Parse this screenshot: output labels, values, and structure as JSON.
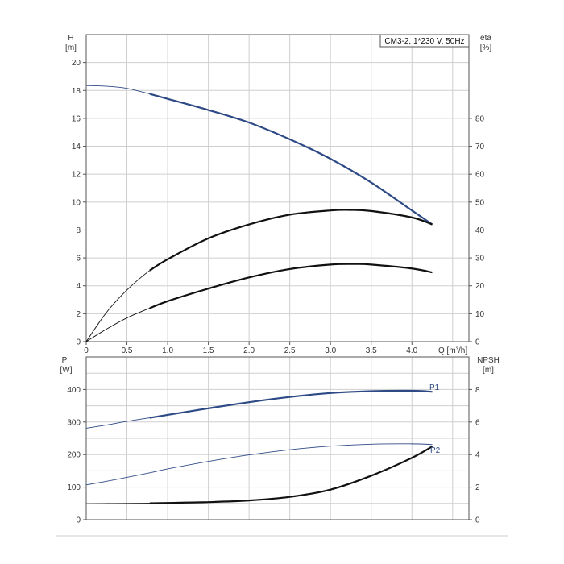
{
  "chart_data": [
    {
      "type": "line",
      "panel": "top",
      "title": "CM3-2, 1*230 V, 50Hz",
      "xlabel": "Q [m³/h]",
      "x_ticks": [
        0,
        0.5,
        1.0,
        1.5,
        2.0,
        2.5,
        3.0,
        3.5,
        4.0
      ],
      "x_tick_labels": [
        "0",
        "0.5",
        "1.0",
        "1.5",
        "2.0",
        "2.5",
        "3.0",
        "3.5",
        "4.0"
      ],
      "xlim": [
        0,
        4.7
      ],
      "ylabel_left": [
        "H",
        "[m]"
      ],
      "ylim_left": [
        0,
        22
      ],
      "y_ticks_left": [
        0,
        2,
        4,
        6,
        8,
        10,
        12,
        14,
        16,
        18,
        20
      ],
      "ylabel_right": [
        "eta",
        "[%]"
      ],
      "ylim_right": [
        0,
        110
      ],
      "y_ticks_right": [
        0,
        10,
        20,
        30,
        40,
        50,
        60,
        70,
        80
      ],
      "grid": true,
      "series": [
        {
          "axis": "left",
          "color": "#2e4a86",
          "thin_until_x": 0.78,
          "x": [
            0,
            0.25,
            0.5,
            0.78,
            1.0,
            1.5,
            2.0,
            2.5,
            3.0,
            3.5,
            4.0,
            4.25
          ],
          "y": [
            18.35,
            18.3,
            18.15,
            17.75,
            17.4,
            16.6,
            15.7,
            14.5,
            13.1,
            11.4,
            9.4,
            8.4
          ]
        },
        {
          "axis": "right",
          "color": "#111111",
          "thin_until_x": 0.78,
          "x": [
            0,
            0.25,
            0.5,
            0.78,
            1.0,
            1.5,
            2.0,
            2.5,
            3.0,
            3.25,
            3.5,
            4.0,
            4.25
          ],
          "y": [
            0,
            10.5,
            18.5,
            25.5,
            29.5,
            37.0,
            42.0,
            45.5,
            47.0,
            47.2,
            46.8,
            44.5,
            42.0
          ]
        },
        {
          "axis": "right",
          "color": "#111111",
          "thin_until_x": 0.78,
          "x": [
            0,
            0.25,
            0.5,
            0.78,
            1.0,
            1.5,
            2.0,
            2.5,
            3.0,
            3.3,
            3.5,
            4.0,
            4.25
          ],
          "y": [
            0,
            4.5,
            8.5,
            12.0,
            14.5,
            19.0,
            23.0,
            26.0,
            27.6,
            27.8,
            27.6,
            26.2,
            24.8
          ]
        }
      ]
    },
    {
      "type": "line",
      "panel": "bottom",
      "x_ticks": [
        0,
        0.5,
        1.0,
        1.5,
        2.0,
        2.5,
        3.0,
        3.5,
        4.0
      ],
      "xlim": [
        0,
        4.7
      ],
      "ylabel_left": [
        "P",
        "[W]"
      ],
      "ylim_left": [
        0,
        500
      ],
      "y_ticks_left": [
        0,
        100,
        200,
        300,
        400
      ],
      "ylabel_right": [
        "NPSH",
        "[m]"
      ],
      "ylim_right": [
        0,
        10
      ],
      "y_ticks_right": [
        0,
        2,
        4,
        6,
        8
      ],
      "grid": true,
      "series": [
        {
          "name": "P1",
          "axis": "left",
          "color": "#2e4a86",
          "thin_until_x": 0.78,
          "x": [
            0,
            0.25,
            0.5,
            0.78,
            1.0,
            1.5,
            2.0,
            2.5,
            3.0,
            3.5,
            4.0,
            4.25
          ],
          "y": [
            281,
            291,
            302,
            313,
            322,
            342,
            361,
            377,
            389,
            395,
            396,
            393
          ]
        },
        {
          "name": "P2",
          "axis": "left",
          "color": "#2e4a86",
          "thin_until_x": 99,
          "x": [
            0,
            0.25,
            0.5,
            0.78,
            1.0,
            1.5,
            2.0,
            2.5,
            3.0,
            3.5,
            4.0,
            4.25
          ],
          "y": [
            107,
            118,
            130,
            144,
            156,
            179,
            199,
            215,
            226,
            232,
            233,
            231
          ]
        },
        {
          "axis": "right",
          "color": "#111111",
          "thin_until_x": 0.78,
          "x": [
            0,
            0.25,
            0.5,
            0.78,
            1.0,
            1.5,
            2.0,
            2.5,
            3.0,
            3.5,
            4.0,
            4.25
          ],
          "y": [
            0.98,
            0.99,
            1.0,
            1.01,
            1.03,
            1.08,
            1.18,
            1.4,
            1.85,
            2.7,
            3.8,
            4.5
          ]
        }
      ]
    }
  ]
}
